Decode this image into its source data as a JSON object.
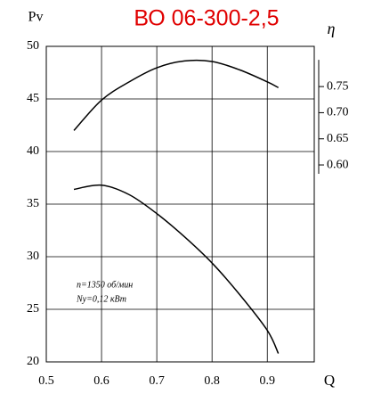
{
  "chart_data": {
    "type": "line",
    "title": "ВО 06-300-2,5",
    "y_label": "Pv",
    "y2_label": "η",
    "x_label": "Q",
    "annotations": [
      "n=1350 об/мин",
      "Ny=0,12 кВт"
    ],
    "x": [
      0.55,
      0.6,
      0.65,
      0.7,
      0.75,
      0.8,
      0.85,
      0.9,
      0.92
    ],
    "series": [
      {
        "color": "#000000",
        "values": [
          36.4,
          36.8,
          35.9,
          34.1,
          31.9,
          29.4,
          26.4,
          23.0,
          20.8
        ]
      },
      {
        "color": "#000000",
        "axis": "y2",
        "values": [
          0.666,
          0.724,
          0.759,
          0.786,
          0.799,
          0.798,
          0.782,
          0.759,
          0.748
        ]
      }
    ],
    "xlim": [
      0.5,
      0.985
    ],
    "xticks": [
      0.5,
      0.6,
      0.7,
      0.8,
      0.9
    ],
    "ylim": [
      20,
      50
    ],
    "yticks": [
      20,
      25,
      30,
      35,
      40,
      45,
      50
    ],
    "y2lim": [
      0.223,
      0.827
    ],
    "y2ticks": [
      {
        "value": 0.6,
        "label": "0.60"
      },
      0.65,
      {
        "value": 0.7,
        "label": "0.70"
      },
      0.75
    ],
    "grid": true
  }
}
